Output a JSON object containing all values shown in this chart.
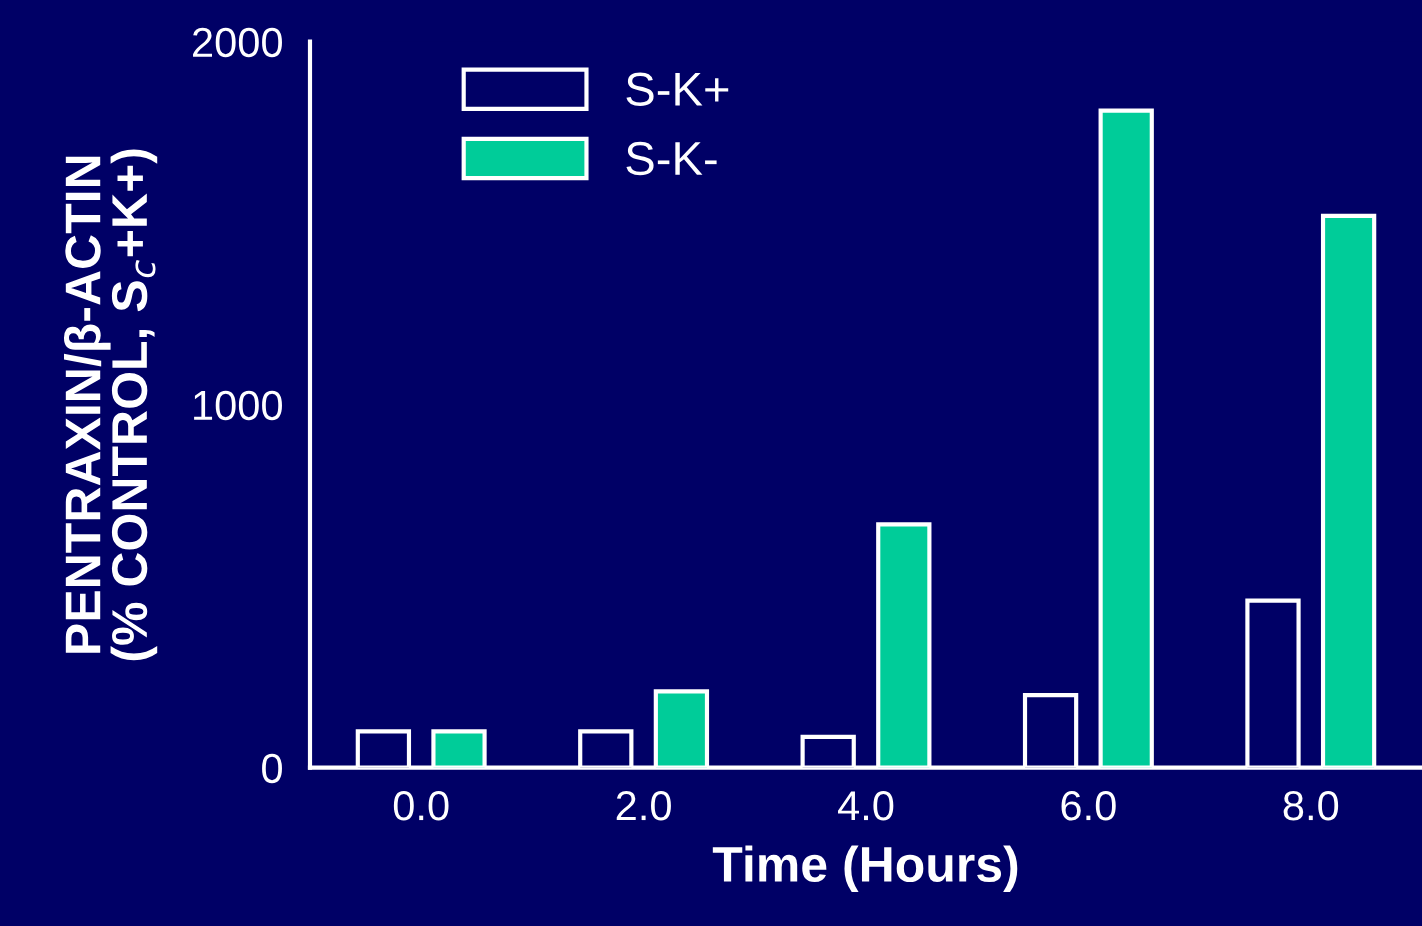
{
  "chart_data": {
    "type": "bar",
    "xlabel": "Time (Hours)",
    "ylabel": "PENTRAXIN/β-ACTIN\n(% CONTROL, S$_{c}$+K+)",
    "categories": [
      "0.0",
      "2.0",
      "4.0",
      "6.0",
      "8.0"
    ],
    "series": [
      {
        "name": "S-K+",
        "color": "#000066",
        "values": [
          100,
          100,
          85,
          200,
          460
        ]
      },
      {
        "name": "S-K-",
        "color": "#00cc99",
        "values": [
          100,
          210,
          670,
          1810,
          1520
        ]
      }
    ],
    "ylim": [
      0,
      2000
    ],
    "yticks": [
      0,
      1000,
      2000
    ],
    "grid": false,
    "legend": "top left"
  }
}
